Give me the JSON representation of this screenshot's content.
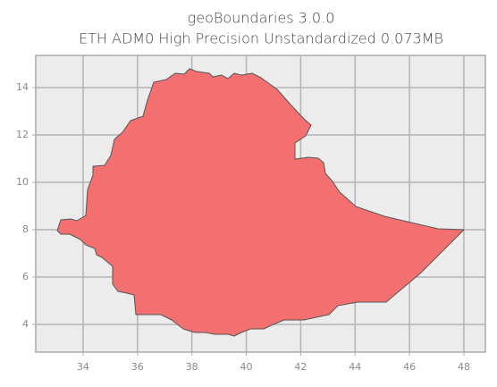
{
  "chart_data": {
    "type": "map",
    "title": "geoBoundaries 3.0.0",
    "subtitle": "ETH ADM0 High Precision Unstandardized 0.073MB",
    "xlim": [
      32.26,
      48.79
    ],
    "xticks": [
      34,
      36,
      38,
      40,
      42,
      44,
      46,
      48
    ],
    "ylim": [
      2.83,
      15.36
    ],
    "yticks": [
      4,
      6,
      8,
      10,
      12,
      14
    ],
    "grid": true,
    "color": "#f47070"
  }
}
